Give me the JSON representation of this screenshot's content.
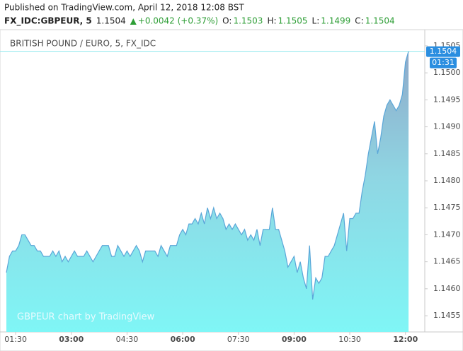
{
  "header": {
    "published": "Published on TradingView.com, April 12, 2018 12:08 BST",
    "symbol": "FX_IDC:GBPEUR, 5",
    "last": "1.1504",
    "change": "+0.0042 (+0.37%)",
    "ohlc": [
      {
        "label": "O:",
        "value": "1.1503"
      },
      {
        "label": "H:",
        "value": "1.1505"
      },
      {
        "label": "L:",
        "value": "1.1499"
      },
      {
        "label": "C:",
        "value": "1.1504"
      }
    ]
  },
  "chart_data": {
    "type": "area",
    "title": "BRITISH POUND / EURO, 5, FX_IDC",
    "watermark": "GBPEUR chart by TradingView",
    "countdown": "01:31",
    "color": "#5aa6d8",
    "categories": [
      null,
      null,
      null,
      "01:30",
      null,
      null,
      null,
      null,
      null,
      null,
      null,
      null,
      null,
      null,
      null,
      null,
      null,
      null,
      null,
      null,
      null,
      "03:00",
      null,
      null,
      null,
      null,
      null,
      null,
      null,
      null,
      null,
      null,
      null,
      null,
      null,
      null,
      null,
      null,
      null,
      "04:30",
      null,
      null,
      null,
      null,
      null,
      null,
      null,
      null,
      null,
      null,
      null,
      null,
      null,
      null,
      null,
      null,
      null,
      "06:00",
      null,
      null,
      null,
      null,
      null,
      null,
      null,
      null,
      null,
      null,
      null,
      null,
      null,
      null,
      null,
      null,
      null,
      "07:30",
      null,
      null,
      null,
      null,
      null,
      null,
      null,
      null,
      null,
      null,
      null,
      null,
      null,
      null,
      null,
      null,
      null,
      "09:00",
      null,
      null,
      null,
      null,
      null,
      null,
      null,
      null,
      null,
      null,
      null,
      null,
      null,
      null,
      null,
      null,
      null,
      "10:30",
      null,
      null,
      null,
      null,
      null,
      null,
      null,
      null,
      null,
      null,
      null,
      null,
      null,
      null,
      null,
      null,
      null,
      "12:00",
      null
    ],
    "values": [
      1.1463,
      1.1466,
      1.1467,
      1.1467,
      1.1468,
      1.147,
      1.147,
      1.1469,
      1.1468,
      1.1468,
      1.1467,
      1.1467,
      1.1466,
      1.1466,
      1.1466,
      1.1467,
      1.1466,
      1.1467,
      1.1465,
      1.1466,
      1.1465,
      1.1466,
      1.1467,
      1.1466,
      1.1466,
      1.1466,
      1.1467,
      1.1466,
      1.1465,
      1.1466,
      1.1467,
      1.1468,
      1.1468,
      1.1468,
      1.1466,
      1.1466,
      1.1468,
      1.1467,
      1.1466,
      1.1467,
      1.1466,
      1.1467,
      1.1468,
      1.1467,
      1.1465,
      1.1467,
      1.1467,
      1.1467,
      1.1467,
      1.1466,
      1.1468,
      1.1467,
      1.1466,
      1.1468,
      1.1468,
      1.1468,
      1.147,
      1.1471,
      1.147,
      1.1472,
      1.1472,
      1.1473,
      1.1472,
      1.1474,
      1.1472,
      1.1475,
      1.1473,
      1.1475,
      1.1473,
      1.1474,
      1.1473,
      1.1471,
      1.1472,
      1.1471,
      1.1472,
      1.1471,
      1.147,
      1.1471,
      1.1469,
      1.147,
      1.1469,
      1.1471,
      1.1468,
      1.1471,
      1.1471,
      1.1471,
      1.1475,
      1.1471,
      1.1471,
      1.1469,
      1.1467,
      1.1464,
      1.1465,
      1.1466,
      1.1463,
      1.1465,
      1.1462,
      1.146,
      1.1468,
      1.1458,
      1.1462,
      1.1461,
      1.1462,
      1.1466,
      1.1466,
      1.1467,
      1.1468,
      1.147,
      1.1472,
      1.1474,
      1.1467,
      1.1473,
      1.1473,
      1.1474,
      1.1474,
      1.1478,
      1.1481,
      1.1485,
      1.1488,
      1.1491,
      1.1485,
      1.1488,
      1.1492,
      1.1494,
      1.1495,
      1.1494,
      1.1493,
      1.1494,
      1.1496,
      1.1502,
      1.1504
    ],
    "ylim": [
      1.1452,
      1.1508
    ],
    "yticks": [
      1.1455,
      {
        "value": 1.146,
        "label": "1.1460"
      },
      1.1465,
      {
        "value": 1.147,
        "label": "1.1470"
      },
      1.1475,
      {
        "value": 1.148,
        "label": "1.1480"
      },
      1.1485,
      {
        "value": 1.149,
        "label": "1.1490"
      },
      1.1495,
      {
        "value": 1.15,
        "label": "1.1500"
      },
      1.1505
    ],
    "grid": false
  }
}
